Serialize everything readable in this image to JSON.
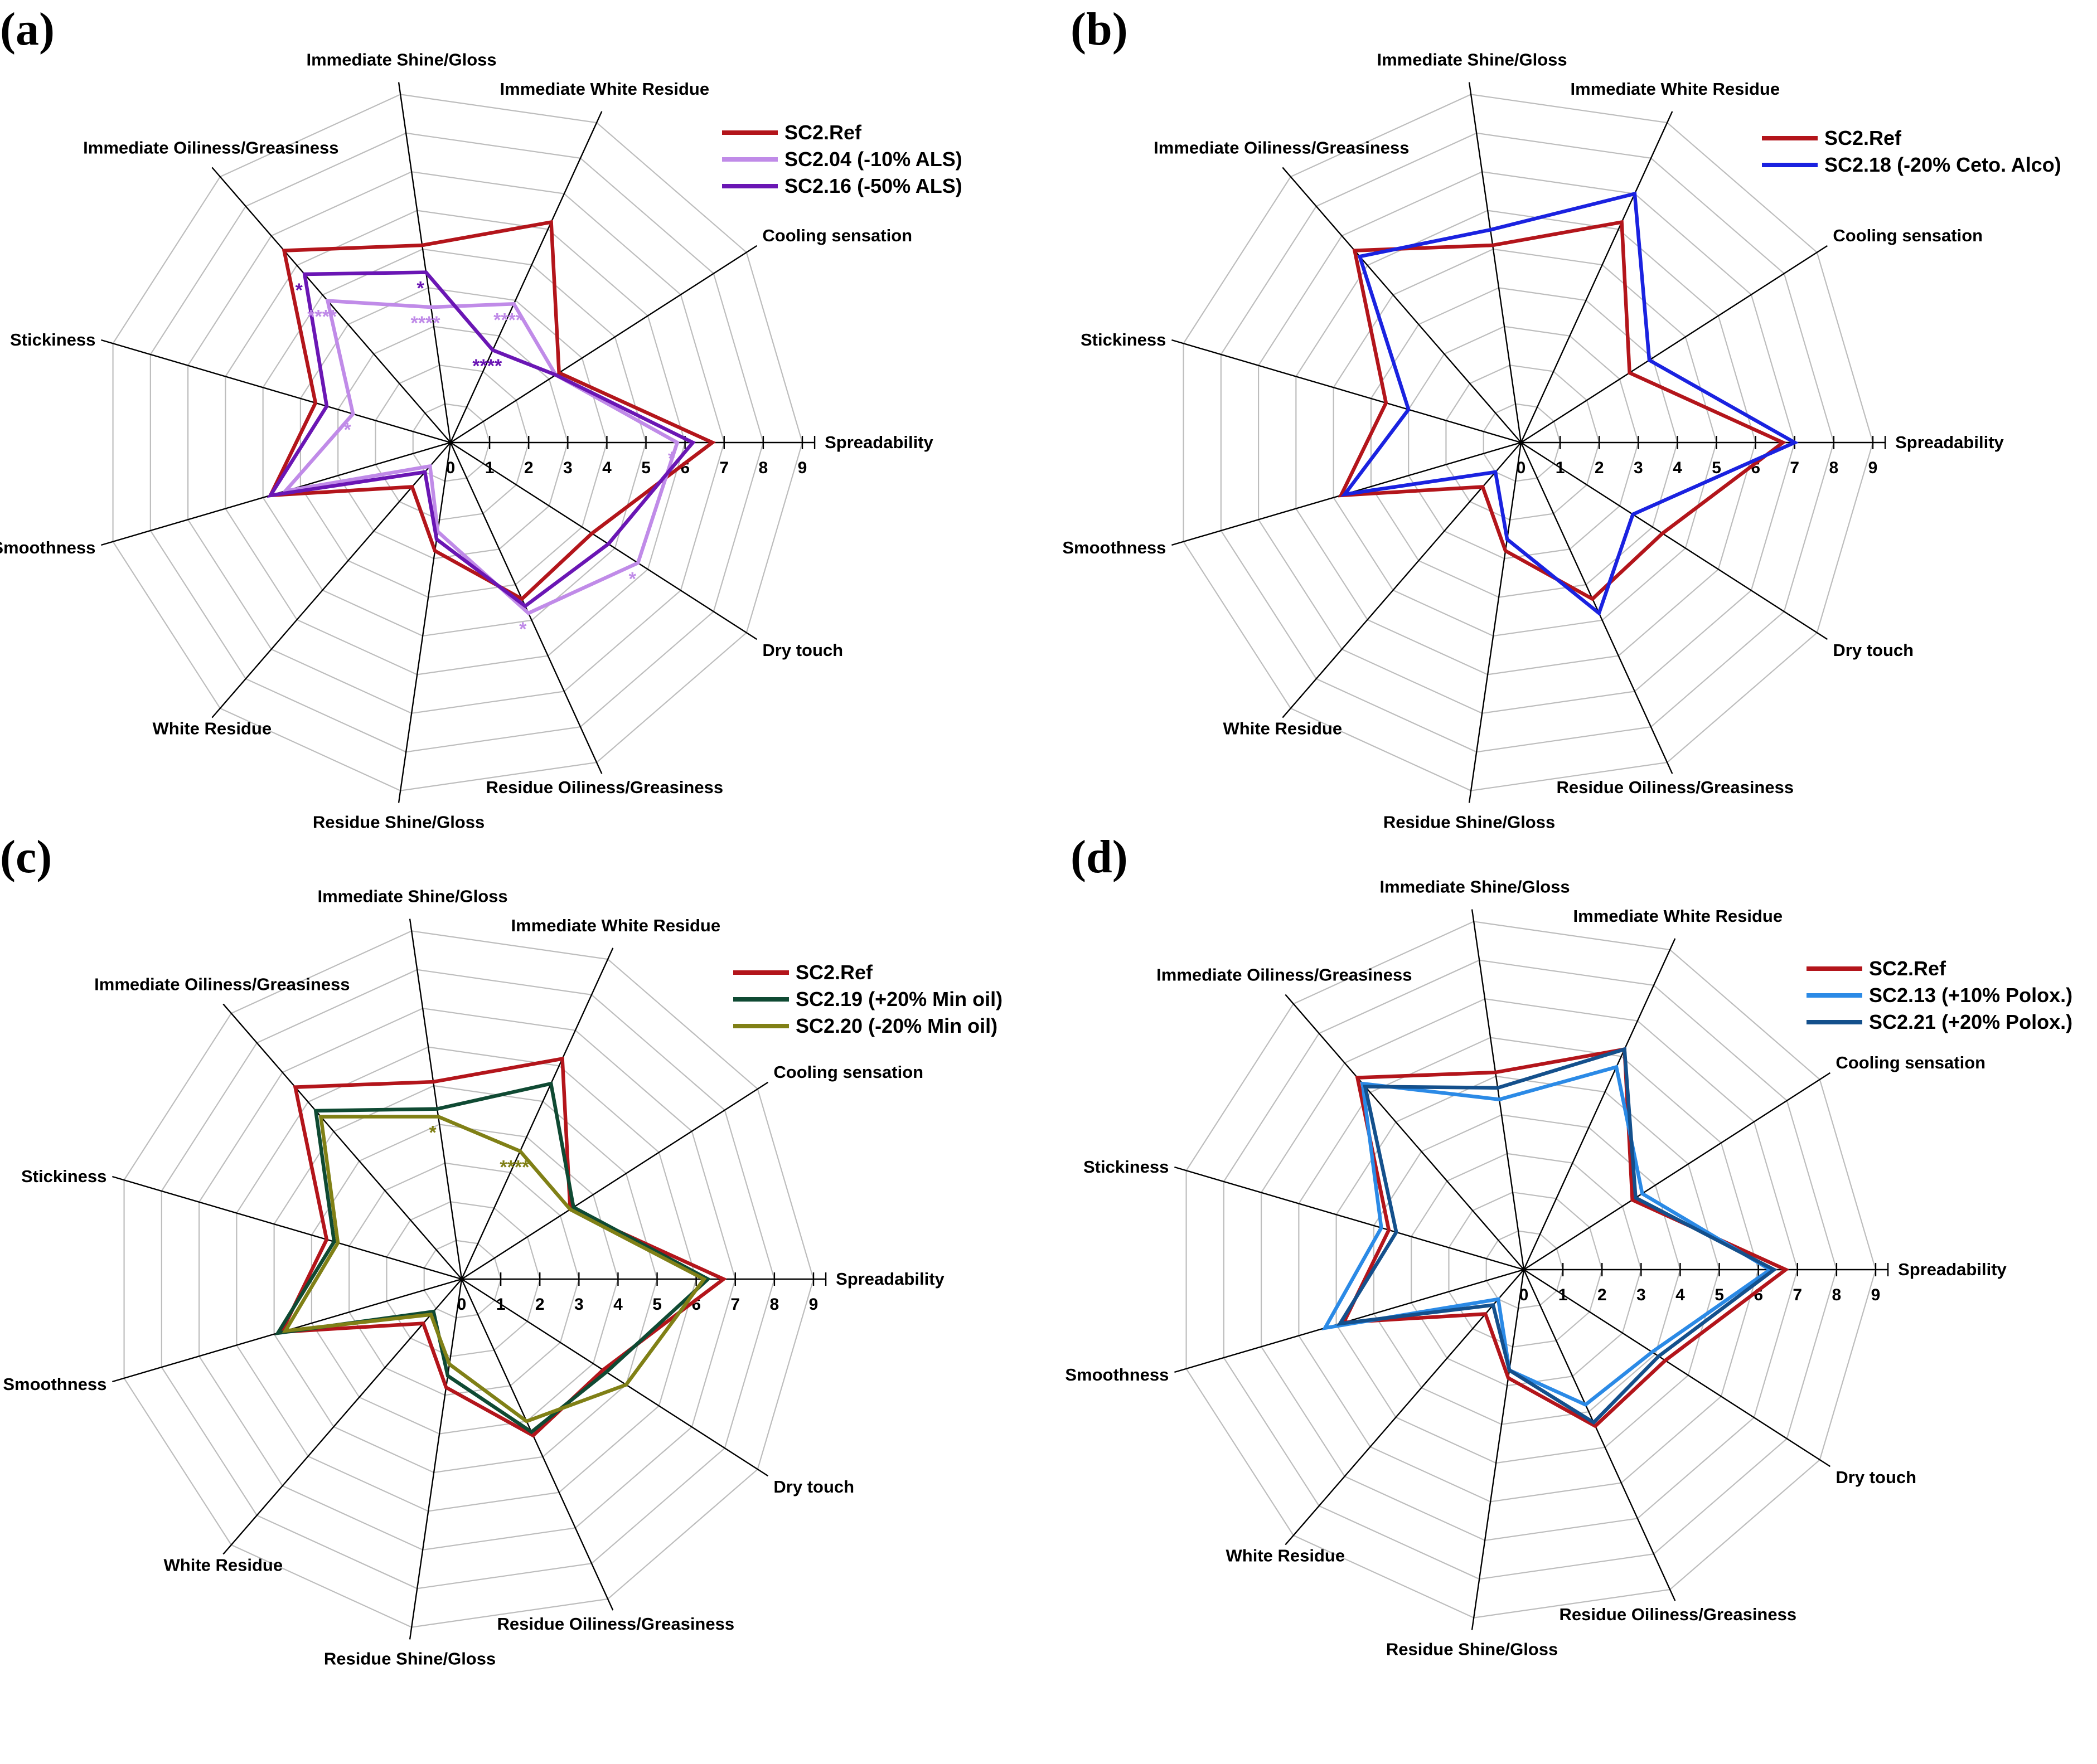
{
  "axes": [
    "Spreadability",
    "Cooling sensation",
    "Immediate White Residue",
    "Immediate Shine/Gloss",
    "Immediate Oiliness/Greasiness",
    "Stickiness",
    "Smoothness",
    "White Residue",
    "Residue Shine/Gloss",
    "Residue Oiliness/Greasiness",
    "Dry touch"
  ],
  "chart_data": [
    {
      "type": "radar",
      "panel_label": "(a)",
      "categories": [
        "Spreadability",
        "Cooling sensation",
        "Immediate White Residue",
        "Immediate Shine/Gloss",
        "Immediate Oiliness/Greasiness",
        "Stickiness",
        "Smoothness",
        "White Residue",
        "Residue Shine/Gloss",
        "Residue Oiliness/Greasiness",
        "Dry touch"
      ],
      "ticks": [
        "0",
        "1",
        "2",
        "3",
        "4",
        "5",
        "6",
        "7",
        "8",
        "9"
      ],
      "rlim": [
        0,
        9
      ],
      "legend": "top-right",
      "series": [
        {
          "name": "SC2.Ref",
          "color": "#b3151b",
          "values": [
            6.7,
            3.3,
            6.2,
            5.1,
            6.5,
            3.6,
            4.8,
            1.5,
            2.8,
            4.4,
            4.3
          ]
        },
        {
          "name": "SC2.04 (-10% ALS)",
          "color": "#c08be8",
          "values": [
            5.8,
            3.2,
            3.9,
            3.5,
            4.8,
            2.6,
            4.4,
            0.8,
            2.3,
            4.8,
            5.7
          ]
        },
        {
          "name": "SC2.16 (-50% ALS)",
          "color": "#6a16b4",
          "values": [
            6.2,
            3.2,
            2.6,
            4.4,
            5.7,
            3.3,
            4.8,
            1.0,
            2.5,
            4.6,
            4.8
          ]
        }
      ],
      "significance": [
        {
          "axis": "Immediate White Residue",
          "label": "****",
          "series": "SC2.04 (-10% ALS)"
        },
        {
          "axis": "Immediate White Residue",
          "label": "****",
          "series": "SC2.16 (-50% ALS)"
        },
        {
          "axis": "Immediate Shine/Gloss",
          "label": "****",
          "series": "SC2.04 (-10% ALS)"
        },
        {
          "axis": "Immediate Shine/Gloss",
          "label": "*",
          "series": "SC2.16 (-50% ALS)"
        },
        {
          "axis": "Immediate Oiliness/Greasiness",
          "label": "****",
          "series": "SC2.04 (-10% ALS)"
        },
        {
          "axis": "Immediate Oiliness/Greasiness",
          "label": "*",
          "series": "SC2.16 (-50% ALS)"
        },
        {
          "axis": "Stickiness",
          "label": "*",
          "series": "SC2.04 (-10% ALS)"
        },
        {
          "axis": "Spreadability",
          "label": "*",
          "series": "SC2.04 (-10% ALS)"
        },
        {
          "axis": "Dry touch",
          "label": "*",
          "series": "SC2.04 (-10% ALS)"
        },
        {
          "axis": "Residue Oiliness/Greasiness",
          "label": "*",
          "series": "SC2.04 (-10% ALS)"
        }
      ]
    },
    {
      "type": "radar",
      "panel_label": "(b)",
      "categories": [
        "Spreadability",
        "Cooling sensation",
        "Immediate White Residue",
        "Immediate Shine/Gloss",
        "Immediate Oiliness/Greasiness",
        "Stickiness",
        "Smoothness",
        "White Residue",
        "Residue Shine/Gloss",
        "Residue Oiliness/Greasiness",
        "Dry touch"
      ],
      "ticks": [
        "0",
        "1",
        "2",
        "3",
        "4",
        "5",
        "6",
        "7",
        "8",
        "9"
      ],
      "rlim": [
        0,
        9
      ],
      "legend": "top-right",
      "series": [
        {
          "name": "SC2.Ref",
          "color": "#b3151b",
          "values": [
            6.7,
            3.3,
            6.2,
            5.1,
            6.5,
            3.6,
            4.8,
            1.5,
            2.8,
            4.4,
            4.3
          ]
        },
        {
          "name": "SC2.18 (-20% Ceto. Alco)",
          "color": "#1a22e0",
          "values": [
            7.0,
            3.9,
            7.0,
            5.5,
            6.3,
            3.0,
            4.7,
            1.0,
            2.5,
            4.8,
            3.4
          ]
        }
      ],
      "significance": []
    },
    {
      "type": "radar",
      "panel_label": "(c)",
      "categories": [
        "Spreadability",
        "Cooling sensation",
        "Immediate White Residue",
        "Immediate Shine/Gloss",
        "Immediate Oiliness/Greasiness",
        "Stickiness",
        "Smoothness",
        "White Residue",
        "Residue Shine/Gloss",
        "Residue Oiliness/Greasiness",
        "Dry touch"
      ],
      "ticks": [
        "0",
        "1",
        "2",
        "3",
        "4",
        "5",
        "6",
        "7",
        "8",
        "9"
      ],
      "rlim": [
        0,
        9
      ],
      "legend": "top-right",
      "series": [
        {
          "name": "SC2.Ref",
          "color": "#b3151b",
          "values": [
            6.7,
            3.3,
            6.2,
            5.1,
            6.5,
            3.6,
            4.8,
            1.5,
            2.8,
            4.4,
            4.3
          ]
        },
        {
          "name": "SC2.19 (+20% Min oil)",
          "color": "#0f4a33",
          "values": [
            6.3,
            3.4,
            5.5,
            4.4,
            5.7,
            3.4,
            4.9,
            1.1,
            2.5,
            4.3,
            4.4
          ]
        },
        {
          "name": "SC2.20 (-20% Min oil)",
          "color": "#808016",
          "values": [
            6.2,
            3.3,
            3.6,
            4.2,
            5.5,
            3.3,
            4.7,
            1.2,
            2.2,
            4.0,
            5.0
          ]
        }
      ],
      "significance": [
        {
          "axis": "Immediate White Residue",
          "label": "****",
          "series": "SC2.20 (-20% Min oil)"
        },
        {
          "axis": "Immediate Shine/Gloss",
          "label": "*",
          "series": "SC2.20 (-20% Min oil)"
        }
      ]
    },
    {
      "type": "radar",
      "panel_label": "(d)",
      "categories": [
        "Spreadability",
        "Cooling sensation",
        "Immediate White Residue",
        "Immediate Shine/Gloss",
        "Immediate Oiliness/Greasiness",
        "Stickiness",
        "Smoothness",
        "White Residue",
        "Residue Shine/Gloss",
        "Residue Oiliness/Greasiness",
        "Dry touch"
      ],
      "ticks": [
        "0",
        "1",
        "2",
        "3",
        "4",
        "5",
        "6",
        "7",
        "8",
        "9"
      ],
      "rlim": [
        0,
        9
      ],
      "legend": "top-right",
      "series": [
        {
          "name": "SC2.Ref",
          "color": "#b3151b",
          "values": [
            6.7,
            3.3,
            6.2,
            5.1,
            6.5,
            3.6,
            4.8,
            1.5,
            2.8,
            4.4,
            4.3
          ]
        },
        {
          "name": "SC2.13 (+10% Polox.)",
          "color": "#2b8ae6",
          "values": [
            6.3,
            3.6,
            5.7,
            4.4,
            6.3,
            3.8,
            5.3,
            1.0,
            2.6,
            3.8,
            3.9
          ]
        },
        {
          "name": "SC2.21 (+20% Polox.)",
          "color": "#14508c",
          "values": [
            6.4,
            3.4,
            6.2,
            4.7,
            6.2,
            3.4,
            4.9,
            1.2,
            2.6,
            4.3,
            4.1
          ]
        }
      ],
      "significance": []
    }
  ]
}
